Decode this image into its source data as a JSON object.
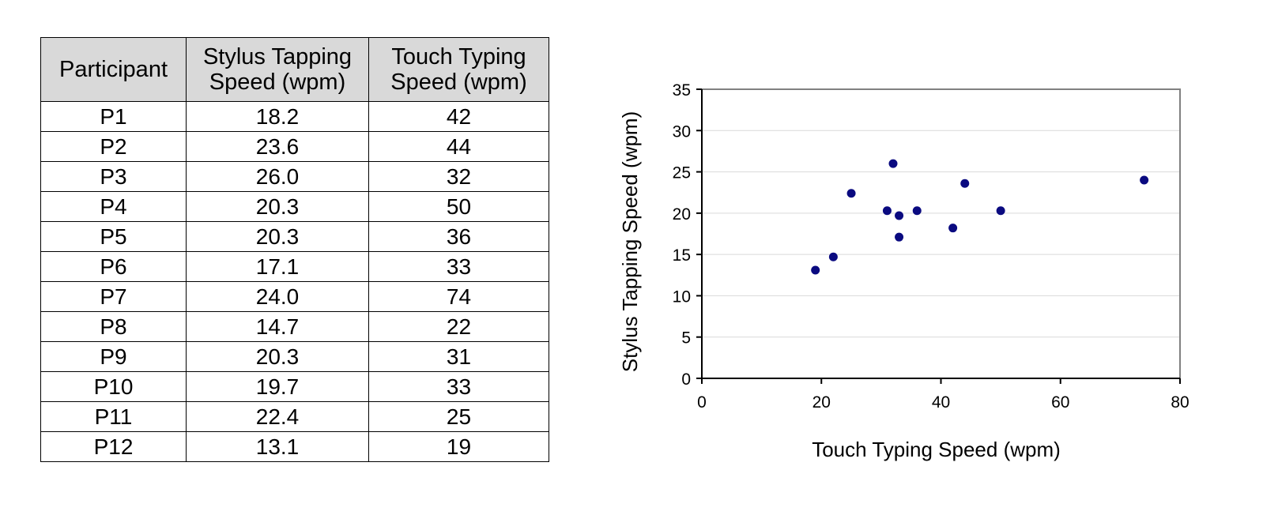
{
  "table": {
    "headers": [
      [
        "Participant"
      ],
      [
        "Stylus Tapping",
        "Speed (wpm)"
      ],
      [
        "Touch Typing",
        "Speed (wpm)"
      ]
    ],
    "rows": [
      [
        "P1",
        "18.2",
        "42"
      ],
      [
        "P2",
        "23.6",
        "44"
      ],
      [
        "P3",
        "26.0",
        "32"
      ],
      [
        "P4",
        "20.3",
        "50"
      ],
      [
        "P5",
        "20.3",
        "36"
      ],
      [
        "P6",
        "17.1",
        "33"
      ],
      [
        "P7",
        "24.0",
        "74"
      ],
      [
        "P8",
        "14.7",
        "22"
      ],
      [
        "P9",
        "20.3",
        "31"
      ],
      [
        "P10",
        "19.7",
        "33"
      ],
      [
        "P11",
        "22.4",
        "25"
      ],
      [
        "P12",
        "13.1",
        "19"
      ]
    ],
    "header_bg": "#d9d9d9"
  },
  "chart_data": {
    "type": "scatter",
    "title": "",
    "xlabel": "Touch Typing Speed (wpm)",
    "ylabel": "Stylus Tapping Speed (wpm)",
    "xlim": [
      0,
      80
    ],
    "ylim": [
      0,
      35
    ],
    "xticks": [
      0,
      20,
      40,
      60,
      80
    ],
    "yticks": [
      0,
      5,
      10,
      15,
      20,
      25,
      30,
      35
    ],
    "grid": "horizontal",
    "legend": "none",
    "marker_color": "#0a0a80",
    "gridline_color": "#d9d9d9",
    "plot_border_color": "#808080",
    "points": [
      {
        "x": 42,
        "y": 18.2
      },
      {
        "x": 44,
        "y": 23.6
      },
      {
        "x": 32,
        "y": 26.0
      },
      {
        "x": 50,
        "y": 20.3
      },
      {
        "x": 36,
        "y": 20.3
      },
      {
        "x": 33,
        "y": 17.1
      },
      {
        "x": 74,
        "y": 24.0
      },
      {
        "x": 22,
        "y": 14.7
      },
      {
        "x": 31,
        "y": 20.3
      },
      {
        "x": 33,
        "y": 19.7
      },
      {
        "x": 25,
        "y": 22.4
      },
      {
        "x": 19,
        "y": 13.1
      }
    ]
  }
}
